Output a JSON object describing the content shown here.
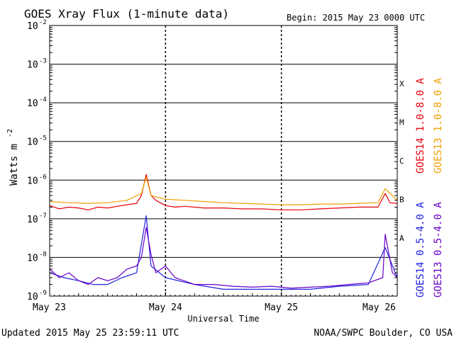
{
  "chart_data": {
    "type": "line",
    "title": "GOES Xray Flux (1-minute data)",
    "begin_label": "Begin:  2015 May 23 0000 UTC",
    "xlabel": "Universal Time",
    "ylabel_base": "Watts m",
    "ylabel_exp": "-2",
    "yscale": "log",
    "ylim": [
      1e-09,
      0.01
    ],
    "xlim": [
      "2015-05-23 00:00",
      "2015-05-26 00:00"
    ],
    "grid": true,
    "x_ticks": [
      "May 23",
      "May 24",
      "May 25",
      "May 26"
    ],
    "y_ticks": [
      {
        "base": "10",
        "exp": "-2"
      },
      {
        "base": "10",
        "exp": "-3"
      },
      {
        "base": "10",
        "exp": "-4"
      },
      {
        "base": "10",
        "exp": "-5"
      },
      {
        "base": "10",
        "exp": "-6"
      },
      {
        "base": "10",
        "exp": "-7"
      },
      {
        "base": "10",
        "exp": "-8"
      },
      {
        "base": "10",
        "exp": "-9"
      }
    ],
    "flare_classes": [
      {
        "label": "X",
        "value": 0.0001
      },
      {
        "label": "M",
        "value": 1e-05
      },
      {
        "label": "C",
        "value": 1e-06
      },
      {
        "label": "B",
        "value": 1e-07
      },
      {
        "label": "A",
        "value": 1e-08
      }
    ],
    "legend_position": "right",
    "series": [
      {
        "name": "GOES14 1.0-8.0 A",
        "color": "#e8000b",
        "x": [
          "2015-05-23 00:00",
          "2015-05-23 02:00",
          "2015-05-23 04:00",
          "2015-05-23 06:00",
          "2015-05-23 08:00",
          "2015-05-23 10:00",
          "2015-05-23 12:00",
          "2015-05-23 14:00",
          "2015-05-23 16:00",
          "2015-05-23 18:00",
          "2015-05-23 19:00",
          "2015-05-23 20:00",
          "2015-05-23 21:00",
          "2015-05-23 22:00",
          "2015-05-24 00:00",
          "2015-05-24 02:00",
          "2015-05-24 04:00",
          "2015-05-24 08:00",
          "2015-05-24 12:00",
          "2015-05-24 16:00",
          "2015-05-24 20:00",
          "2015-05-25 00:00",
          "2015-05-25 04:00",
          "2015-05-25 08:00",
          "2015-05-25 12:00",
          "2015-05-25 16:00",
          "2015-05-25 20:00",
          "2015-05-25 21:30",
          "2015-05-25 22:30",
          "2015-05-26 00:00"
        ],
        "y": [
          2.2e-07,
          1.8e-07,
          2e-07,
          1.9e-07,
          1.7e-07,
          2e-07,
          1.9e-07,
          2.1e-07,
          2.3e-07,
          2.5e-07,
          4e-07,
          1.4e-06,
          4e-07,
          3e-07,
          2.2e-07,
          2e-07,
          2.1e-07,
          1.9e-07,
          1.9e-07,
          1.8e-07,
          1.8e-07,
          1.7e-07,
          1.7e-07,
          1.8e-07,
          1.9e-07,
          2e-07,
          2e-07,
          4.5e-07,
          2.6e-07,
          2.5e-07
        ]
      },
      {
        "name": "GOES13 1.0-8.0 A",
        "color": "#f0a000",
        "x": [
          "2015-05-23 00:00",
          "2015-05-23 04:00",
          "2015-05-23 08:00",
          "2015-05-23 12:00",
          "2015-05-23 16:00",
          "2015-05-23 19:00",
          "2015-05-23 20:00",
          "2015-05-23 21:00",
          "2015-05-24 00:00",
          "2015-05-24 04:00",
          "2015-05-24 08:00",
          "2015-05-24 12:00",
          "2015-05-24 16:00",
          "2015-05-24 20:00",
          "2015-05-25 00:00",
          "2015-05-25 04:00",
          "2015-05-25 08:00",
          "2015-05-25 12:00",
          "2015-05-25 16:00",
          "2015-05-25 20:00",
          "2015-05-25 21:30",
          "2015-05-26 00:00"
        ],
        "y": [
          2.8e-07,
          2.6e-07,
          2.5e-07,
          2.6e-07,
          3e-07,
          4.5e-07,
          1.2e-06,
          4e-07,
          3.2e-07,
          3e-07,
          2.8e-07,
          2.6e-07,
          2.5e-07,
          2.4e-07,
          2.3e-07,
          2.3e-07,
          2.4e-07,
          2.4e-07,
          2.5e-07,
          2.6e-07,
          6e-07,
          3e-07
        ]
      },
      {
        "name": "GOES14 0.5-4.0 A",
        "color": "#2020e0",
        "x": [
          "2015-05-23 00:00",
          "2015-05-23 03:00",
          "2015-05-23 06:00",
          "2015-05-23 09:00",
          "2015-05-23 12:00",
          "2015-05-23 15:00",
          "2015-05-23 18:00",
          "2015-05-23 20:00",
          "2015-05-23 21:00",
          "2015-05-24 00:00",
          "2015-05-24 06:00",
          "2015-05-24 12:00",
          "2015-05-24 18:00",
          "2015-05-25 00:00",
          "2015-05-25 06:00",
          "2015-05-25 12:00",
          "2015-05-25 18:00",
          "2015-05-25 21:30",
          "2015-05-26 00:00"
        ],
        "y": [
          4e-09,
          3e-09,
          2.5e-09,
          2e-09,
          2e-09,
          3e-09,
          4e-09,
          1.2e-07,
          6e-09,
          3e-09,
          2e-09,
          1.5e-09,
          1.5e-09,
          1.5e-09,
          1.5e-09,
          1.8e-09,
          2e-09,
          1.8e-08,
          3e-09
        ]
      },
      {
        "name": "GOES13 0.5-4.0 A",
        "color": "#6a00c8",
        "x": [
          "2015-05-23 00:00",
          "2015-05-23 02:00",
          "2015-05-23 04:00",
          "2015-05-23 06:00",
          "2015-05-23 08:00",
          "2015-05-23 10:00",
          "2015-05-23 12:00",
          "2015-05-23 14:00",
          "2015-05-23 16:00",
          "2015-05-23 18:00",
          "2015-05-23 19:00",
          "2015-05-23 20:00",
          "2015-05-23 21:00",
          "2015-05-23 22:00",
          "2015-05-24 00:00",
          "2015-05-24 02:00",
          "2015-05-24 06:00",
          "2015-05-24 10:00",
          "2015-05-24 14:00",
          "2015-05-24 18:00",
          "2015-05-24 22:00",
          "2015-05-25 02:00",
          "2015-05-25 06:00",
          "2015-05-25 10:00",
          "2015-05-25 14:00",
          "2015-05-25 18:00",
          "2015-05-25 21:00",
          "2015-05-25 21:30",
          "2015-05-25 23:00",
          "2015-05-26 00:00"
        ],
        "y": [
          5e-09,
          3e-09,
          4e-09,
          2.5e-09,
          2e-09,
          3e-09,
          2.5e-09,
          3e-09,
          5e-09,
          6e-09,
          1e-08,
          6e-08,
          1.2e-08,
          4e-09,
          6e-09,
          3e-09,
          2e-09,
          2e-09,
          1.8e-09,
          1.7e-09,
          1.8e-09,
          1.6e-09,
          1.7e-09,
          1.8e-09,
          2e-09,
          2.2e-09,
          3e-09,
          4e-08,
          4e-09,
          3e-09
        ]
      }
    ]
  },
  "footer": {
    "updated": "Updated 2015 May 25 23:59:11 UTC",
    "credit": "NOAA/SWPC Boulder, CO USA"
  }
}
